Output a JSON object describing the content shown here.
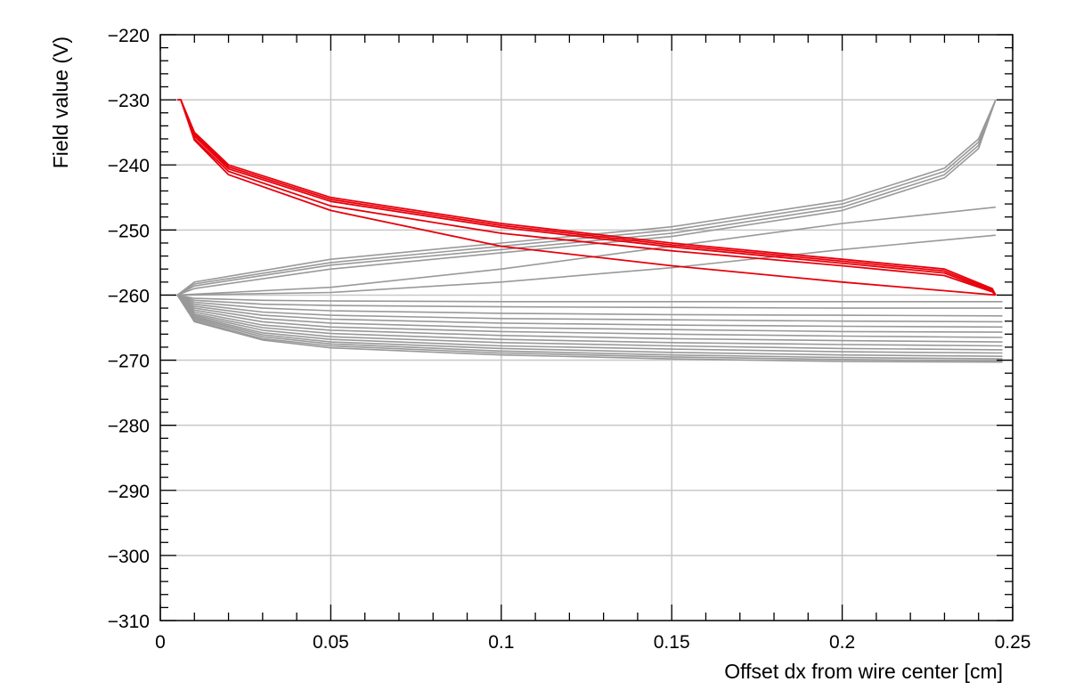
{
  "chart_data": {
    "type": "line",
    "title": "",
    "xlabel": "Offset dx from wire center [cm]",
    "ylabel": "Field value (V)",
    "xlim": [
      0,
      0.25
    ],
    "ylim": [
      -310,
      -220
    ],
    "x_ticks": [
      0,
      0.05,
      0.1,
      0.15,
      0.2,
      0.25
    ],
    "x_tick_labels": [
      "0",
      "0.05",
      "0.1",
      "0.15",
      "0.2",
      "0.25"
    ],
    "y_ticks": [
      -310,
      -300,
      -290,
      -280,
      -270,
      -260,
      -250,
      -240,
      -230,
      -220
    ],
    "y_tick_labels": [
      "−310",
      "−300",
      "−290",
      "−280",
      "−270",
      "−260",
      "−250",
      "−240",
      "−230",
      "−220"
    ],
    "grid": true,
    "legend": "none",
    "colors": {
      "highlight": "#e8000b",
      "background_curves": "#999999",
      "grid": "#c8c8c8"
    },
    "series": [
      {
        "color": "#e8000b",
        "x": [
          0.005,
          0.006,
          0.01,
          0.02,
          0.05,
          0.1,
          0.15,
          0.2,
          0.23,
          0.244,
          0.245
        ],
        "y": [
          -230,
          -230,
          -235,
          -240,
          -245,
          -249,
          -252,
          -254.5,
          -256,
          -259,
          -260
        ]
      },
      {
        "color": "#e8000b",
        "x": [
          0.005,
          0.006,
          0.01,
          0.02,
          0.05,
          0.1,
          0.15,
          0.2,
          0.23,
          0.244,
          0.245
        ],
        "y": [
          -230,
          -230,
          -235.3,
          -240.3,
          -245.3,
          -249.3,
          -252.3,
          -254.8,
          -256.3,
          -259.2,
          -260
        ]
      },
      {
        "color": "#e8000b",
        "x": [
          0.005,
          0.006,
          0.01,
          0.02,
          0.05,
          0.1,
          0.15,
          0.2,
          0.23,
          0.244,
          0.245
        ],
        "y": [
          -230,
          -230,
          -235.6,
          -240.6,
          -245.6,
          -249.6,
          -252.6,
          -255.1,
          -256.6,
          -259.4,
          -260
        ]
      },
      {
        "color": "#e8000b",
        "x": [
          0.005,
          0.006,
          0.01,
          0.02,
          0.05,
          0.1,
          0.15,
          0.2,
          0.23,
          0.244,
          0.245
        ],
        "y": [
          -230,
          -230,
          -236,
          -241,
          -246.3,
          -250.5,
          -253.2,
          -255.5,
          -257,
          -259.5,
          -260
        ]
      },
      {
        "color": "#e8000b",
        "x": [
          0.005,
          0.006,
          0.01,
          0.02,
          0.05,
          0.1,
          0.15,
          0.2,
          0.245
        ],
        "y": [
          -230,
          -230,
          -236.2,
          -241.5,
          -247,
          -252.5,
          -255.5,
          -258,
          -260
        ]
      },
      {
        "color": "#999999",
        "x": [
          0.005,
          0.01,
          0.05,
          0.1,
          0.15,
          0.2,
          0.23,
          0.24,
          0.245
        ],
        "y": [
          -260,
          -258,
          -254.5,
          -252,
          -249.5,
          -245.5,
          -240.5,
          -236,
          -230
        ]
      },
      {
        "color": "#999999",
        "x": [
          0.005,
          0.01,
          0.05,
          0.1,
          0.15,
          0.2,
          0.23,
          0.24,
          0.245
        ],
        "y": [
          -260,
          -258.3,
          -255,
          -252.5,
          -250,
          -246,
          -241,
          -236.5,
          -230
        ]
      },
      {
        "color": "#999999",
        "x": [
          0.005,
          0.01,
          0.05,
          0.1,
          0.15,
          0.2,
          0.23,
          0.24,
          0.245
        ],
        "y": [
          -260,
          -258.6,
          -255.4,
          -253,
          -250.5,
          -246.5,
          -241.5,
          -237,
          -230
        ]
      },
      {
        "color": "#999999",
        "x": [
          0.005,
          0.01,
          0.05,
          0.1,
          0.15,
          0.2,
          0.23,
          0.24,
          0.245
        ],
        "y": [
          -260,
          -259,
          -256,
          -253.5,
          -251,
          -247,
          -242,
          -237.5,
          -230
        ]
      },
      {
        "color": "#999999",
        "x": [
          0.005,
          0.05,
          0.1,
          0.15,
          0.2,
          0.245
        ],
        "y": [
          -260,
          -258.8,
          -256,
          -252.5,
          -249,
          -246.5
        ]
      },
      {
        "color": "#999999",
        "x": [
          0.005,
          0.05,
          0.1,
          0.15,
          0.2,
          0.245
        ],
        "y": [
          -260,
          -259.6,
          -258,
          -255.8,
          -253,
          -250.8
        ]
      },
      {
        "color": "#999999",
        "x": [
          0.005,
          0.01,
          0.03,
          0.05,
          0.1,
          0.15,
          0.2,
          0.247
        ],
        "y": [
          -260,
          -260.5,
          -260.8,
          -260.9,
          -261,
          -261,
          -261,
          -261
        ]
      },
      {
        "color": "#999999",
        "x": [
          0.005,
          0.01,
          0.03,
          0.05,
          0.1,
          0.15,
          0.2,
          0.247
        ],
        "y": [
          -260,
          -260.8,
          -261.4,
          -261.6,
          -261.8,
          -261.9,
          -262,
          -262
        ]
      },
      {
        "color": "#999999",
        "x": [
          0.005,
          0.01,
          0.03,
          0.05,
          0.1,
          0.15,
          0.2,
          0.247
        ],
        "y": [
          -260,
          -261.1,
          -262,
          -262.4,
          -262.8,
          -263,
          -263.1,
          -263.2
        ]
      },
      {
        "color": "#999999",
        "x": [
          0.005,
          0.01,
          0.03,
          0.05,
          0.1,
          0.15,
          0.2,
          0.247
        ],
        "y": [
          -260,
          -261.4,
          -262.6,
          -263.1,
          -263.6,
          -263.8,
          -264,
          -264.1
        ]
      },
      {
        "color": "#999999",
        "x": [
          0.005,
          0.01,
          0.03,
          0.05,
          0.1,
          0.15,
          0.2,
          0.247
        ],
        "y": [
          -260,
          -261.7,
          -263.1,
          -263.7,
          -264.3,
          -264.6,
          -264.8,
          -264.9
        ]
      },
      {
        "color": "#999999",
        "x": [
          0.005,
          0.01,
          0.03,
          0.05,
          0.1,
          0.15,
          0.2,
          0.247
        ],
        "y": [
          -260,
          -262,
          -263.6,
          -264.3,
          -265,
          -265.3,
          -265.6,
          -265.7
        ]
      },
      {
        "color": "#999999",
        "x": [
          0.005,
          0.01,
          0.03,
          0.05,
          0.1,
          0.15,
          0.2,
          0.247
        ],
        "y": [
          -260,
          -262.3,
          -264.1,
          -264.9,
          -265.6,
          -266,
          -266.3,
          -266.5
        ]
      },
      {
        "color": "#999999",
        "x": [
          0.005,
          0.01,
          0.03,
          0.05,
          0.1,
          0.15,
          0.2,
          0.247
        ],
        "y": [
          -260,
          -262.6,
          -264.6,
          -265.4,
          -266.2,
          -266.7,
          -267,
          -267.2
        ]
      },
      {
        "color": "#999999",
        "x": [
          0.005,
          0.01,
          0.03,
          0.05,
          0.1,
          0.15,
          0.2,
          0.247
        ],
        "y": [
          -260,
          -262.9,
          -265,
          -265.9,
          -266.8,
          -267.3,
          -267.6,
          -267.8
        ]
      },
      {
        "color": "#999999",
        "x": [
          0.005,
          0.01,
          0.03,
          0.05,
          0.1,
          0.15,
          0.2,
          0.247
        ],
        "y": [
          -260,
          -263.1,
          -265.4,
          -266.4,
          -267.3,
          -267.8,
          -268.2,
          -268.4
        ]
      },
      {
        "color": "#999999",
        "x": [
          0.005,
          0.01,
          0.03,
          0.05,
          0.1,
          0.15,
          0.2,
          0.247
        ],
        "y": [
          -260,
          -263.3,
          -265.8,
          -266.8,
          -267.8,
          -268.3,
          -268.7,
          -268.9
        ]
      },
      {
        "color": "#999999",
        "x": [
          0.005,
          0.01,
          0.03,
          0.05,
          0.1,
          0.15,
          0.2,
          0.247
        ],
        "y": [
          -260,
          -263.5,
          -266.1,
          -267.2,
          -268.2,
          -268.8,
          -269.2,
          -269.4
        ]
      },
      {
        "color": "#999999",
        "x": [
          0.005,
          0.01,
          0.03,
          0.05,
          0.1,
          0.15,
          0.2,
          0.247
        ],
        "y": [
          -260,
          -263.7,
          -266.4,
          -267.5,
          -268.6,
          -269.2,
          -269.6,
          -269.8
        ]
      },
      {
        "color": "#999999",
        "x": [
          0.005,
          0.01,
          0.03,
          0.05,
          0.1,
          0.15,
          0.2,
          0.247
        ],
        "y": [
          -260,
          -263.9,
          -266.7,
          -267.8,
          -268.9,
          -269.5,
          -269.9,
          -270.1
        ]
      },
      {
        "color": "#999999",
        "x": [
          0.005,
          0.01,
          0.03,
          0.05,
          0.1,
          0.15,
          0.2,
          0.247
        ],
        "y": [
          -260,
          -264.1,
          -266.9,
          -268.1,
          -269.2,
          -269.8,
          -270.2,
          -270.3
        ]
      }
    ]
  }
}
